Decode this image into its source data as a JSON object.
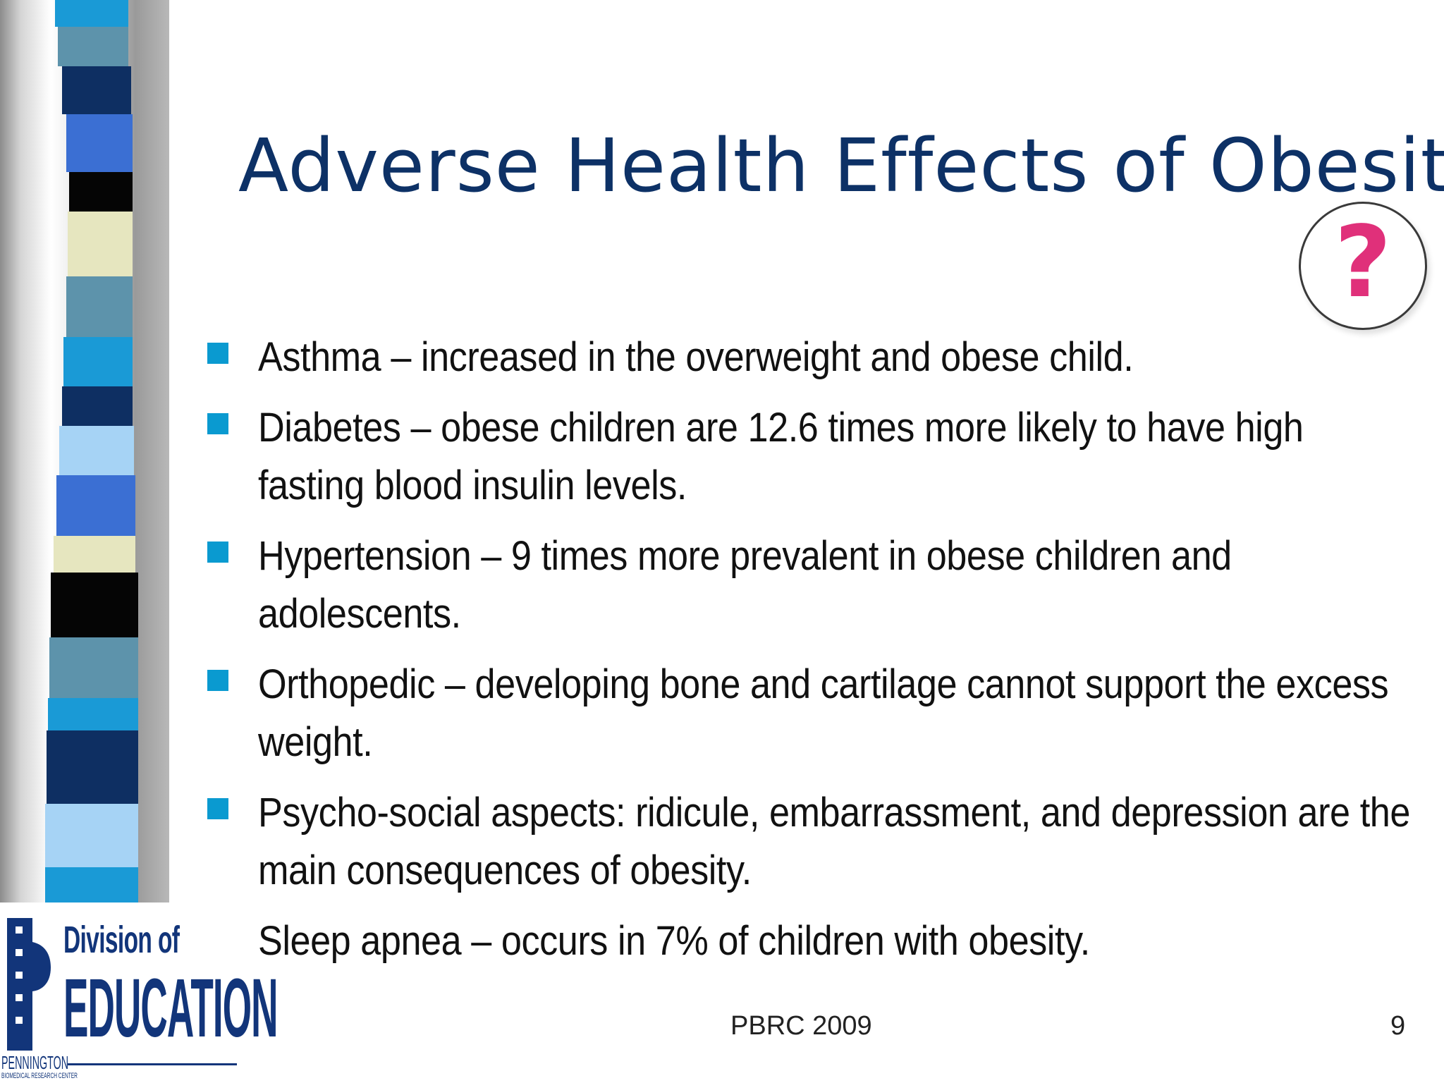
{
  "slide": {
    "title": "Adverse Health Effects of Obesity",
    "question_mark": "?",
    "bullets": [
      "Asthma – increased in the overweight and obese child.",
      "Diabetes – obese children are 12.6 times more likely to have high fasting blood insulin levels.",
      "Hypertension – 9 times more prevalent in obese children and adolescents.",
      "Orthopedic – developing bone and cartilage cannot support the excess weight.",
      "Psycho-social aspects: ridicule, embarrassment, and depression are the main consequences of obesity.",
      "Sleep apnea – occurs in 7% of children with obesity."
    ],
    "footer": "PBRC 2009",
    "page_number": "9"
  },
  "logo": {
    "line1": "Division of",
    "line2": "EDUCATION",
    "org": "PENNINGTON",
    "org_sub": "BIOMEDICAL RESEARCH CENTER"
  },
  "colors": {
    "title": "#0d3166",
    "bullet_marker": "#0a9ad0",
    "question_mark": "#e0307a",
    "logo": "#12357a"
  }
}
